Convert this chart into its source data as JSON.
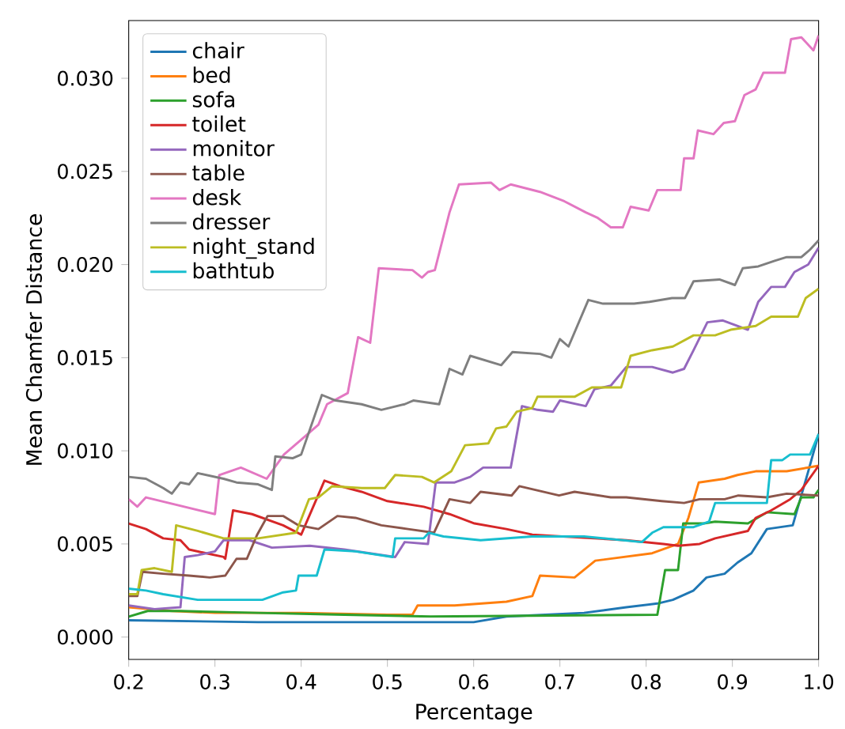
{
  "chart_data": {
    "type": "line",
    "xlabel": "Percentage",
    "ylabel": "Mean Chamfer Distance",
    "xlim": [
      0.2,
      1.0
    ],
    "ylim": [
      -0.0012,
      0.0331
    ],
    "xticks": [
      0.2,
      0.3,
      0.4,
      0.5,
      0.6,
      0.7,
      0.8,
      0.9,
      {
        "value": 1.0,
        "label": "1.0"
      }
    ],
    "yticks": [
      {
        "value": 0,
        "label": "0.000"
      },
      {
        "value": 0.005,
        "label": "0.005"
      },
      {
        "value": 0.01,
        "label": "0.010"
      },
      {
        "value": 0.015,
        "label": "0.015"
      },
      {
        "value": 0.02,
        "label": "0.020"
      },
      {
        "value": 0.025,
        "label": "0.025"
      },
      {
        "value": 0.03,
        "label": "0.030"
      }
    ],
    "legend": "top left",
    "grid": false,
    "marker": "none",
    "line_style": "solid",
    "series": [
      {
        "name": "chair",
        "color": "#1f77b4",
        "x": [
          0.2,
          0.35,
          0.6,
          0.638,
          0.728,
          0.777,
          0.813,
          0.831,
          0.855,
          0.87,
          0.891,
          0.906,
          0.922,
          0.94,
          0.97,
          0.988,
          1.0
        ],
        "values": [
          0.0009,
          0.0008,
          0.0008,
          0.0011,
          0.0013,
          0.0016,
          0.0018,
          0.002,
          0.0025,
          0.0032,
          0.0034,
          0.004,
          0.0045,
          0.0058,
          0.006,
          0.0089,
          0.0109
        ]
      },
      {
        "name": "bed",
        "color": "#ff7f0e",
        "x": [
          0.2,
          0.25,
          0.3,
          0.4,
          0.5,
          0.529,
          0.535,
          0.578,
          0.638,
          0.668,
          0.677,
          0.717,
          0.741,
          0.807,
          0.837,
          0.849,
          0.861,
          0.891,
          0.906,
          0.927,
          0.963,
          1.0
        ],
        "values": [
          0.0016,
          0.0014,
          0.0013,
          0.0013,
          0.0012,
          0.0012,
          0.0017,
          0.0017,
          0.0019,
          0.0022,
          0.0033,
          0.0032,
          0.0041,
          0.0045,
          0.005,
          0.0064,
          0.0083,
          0.0085,
          0.0087,
          0.0089,
          0.0089,
          0.0092
        ]
      },
      {
        "name": "sofa",
        "color": "#2ca02c",
        "x": [
          0.2,
          0.222,
          0.26,
          0.35,
          0.45,
          0.55,
          0.813,
          0.822,
          0.837,
          0.843,
          0.867,
          0.88,
          0.918,
          0.94,
          0.972,
          0.98,
          0.994,
          1.0
        ],
        "values": [
          0.0011,
          0.0014,
          0.0014,
          0.0013,
          0.0012,
          0.0011,
          0.0012,
          0.0036,
          0.0036,
          0.0061,
          0.0061,
          0.0062,
          0.0061,
          0.0067,
          0.0066,
          0.0075,
          0.0075,
          0.0079
        ]
      },
      {
        "name": "toilet",
        "color": "#d62728",
        "x": [
          0.2,
          0.22,
          0.24,
          0.26,
          0.27,
          0.29,
          0.31,
          0.312,
          0.321,
          0.343,
          0.379,
          0.4,
          0.427,
          0.445,
          0.47,
          0.5,
          0.542,
          0.572,
          0.601,
          0.638,
          0.668,
          0.777,
          0.82,
          0.837,
          0.862,
          0.88,
          0.918,
          0.927,
          0.945,
          0.967,
          0.98,
          1.0
        ],
        "values": [
          0.0061,
          0.0058,
          0.0053,
          0.0052,
          0.0047,
          0.0045,
          0.0043,
          0.0042,
          0.0068,
          0.0066,
          0.006,
          0.0055,
          0.0084,
          0.0081,
          0.0078,
          0.0073,
          0.007,
          0.0066,
          0.0061,
          0.0058,
          0.0055,
          0.0052,
          0.005,
          0.0049,
          0.005,
          0.0053,
          0.0057,
          0.0064,
          0.0068,
          0.0074,
          0.0079,
          0.0092
        ]
      },
      {
        "name": "monitor",
        "color": "#9467bd",
        "x": [
          0.2,
          0.23,
          0.26,
          0.265,
          0.28,
          0.3,
          0.31,
          0.34,
          0.366,
          0.41,
          0.45,
          0.509,
          0.52,
          0.547,
          0.556,
          0.578,
          0.596,
          0.611,
          0.643,
          0.656,
          0.674,
          0.692,
          0.7,
          0.73,
          0.74,
          0.759,
          0.777,
          0.807,
          0.831,
          0.844,
          0.855,
          0.871,
          0.889,
          0.918,
          0.93,
          0.945,
          0.961,
          0.972,
          0.988,
          1.0
        ],
        "values": [
          0.0017,
          0.0015,
          0.0016,
          0.0043,
          0.0044,
          0.0046,
          0.0052,
          0.0052,
          0.0048,
          0.0049,
          0.0047,
          0.0043,
          0.0051,
          0.005,
          0.0083,
          0.0083,
          0.0086,
          0.0091,
          0.0091,
          0.0124,
          0.0122,
          0.0121,
          0.0127,
          0.0124,
          0.0133,
          0.0135,
          0.0145,
          0.0145,
          0.0142,
          0.0144,
          0.0154,
          0.0169,
          0.017,
          0.0165,
          0.018,
          0.0188,
          0.0188,
          0.0196,
          0.02,
          0.0209
        ]
      },
      {
        "name": "table",
        "color": "#8c564b",
        "x": [
          0.2,
          0.21,
          0.216,
          0.24,
          0.27,
          0.294,
          0.312,
          0.325,
          0.337,
          0.349,
          0.361,
          0.379,
          0.397,
          0.42,
          0.442,
          0.463,
          0.493,
          0.524,
          0.554,
          0.572,
          0.596,
          0.608,
          0.644,
          0.653,
          0.699,
          0.717,
          0.759,
          0.777,
          0.818,
          0.844,
          0.862,
          0.891,
          0.907,
          0.94,
          0.963,
          1.0
        ],
        "values": [
          0.0022,
          0.0022,
          0.0035,
          0.0034,
          0.0033,
          0.0032,
          0.0033,
          0.0042,
          0.0042,
          0.0055,
          0.0065,
          0.0065,
          0.006,
          0.0058,
          0.0065,
          0.0064,
          0.006,
          0.0058,
          0.0056,
          0.0074,
          0.0072,
          0.0078,
          0.0076,
          0.0081,
          0.0076,
          0.0078,
          0.0075,
          0.0075,
          0.0073,
          0.0072,
          0.0074,
          0.0074,
          0.0076,
          0.0075,
          0.0077,
          0.0076
        ]
      },
      {
        "name": "desk",
        "color": "#e377c2",
        "x": [
          0.2,
          0.21,
          0.22,
          0.3,
          0.305,
          0.33,
          0.36,
          0.38,
          0.4,
          0.42,
          0.43,
          0.454,
          0.466,
          0.48,
          0.49,
          0.529,
          0.54,
          0.547,
          0.555,
          0.572,
          0.583,
          0.62,
          0.63,
          0.643,
          0.677,
          0.705,
          0.73,
          0.744,
          0.759,
          0.773,
          0.782,
          0.803,
          0.813,
          0.84,
          0.844,
          0.855,
          0.86,
          0.878,
          0.89,
          0.903,
          0.914,
          0.927,
          0.936,
          0.961,
          0.968,
          0.98,
          0.994,
          1.0
        ],
        "values": [
          0.0074,
          0.007,
          0.0075,
          0.0066,
          0.0087,
          0.0091,
          0.0085,
          0.0098,
          0.0106,
          0.0114,
          0.0125,
          0.0131,
          0.0161,
          0.0158,
          0.0198,
          0.0197,
          0.0193,
          0.0196,
          0.0197,
          0.0228,
          0.0243,
          0.0244,
          0.024,
          0.0243,
          0.0239,
          0.0234,
          0.0228,
          0.0225,
          0.022,
          0.022,
          0.0231,
          0.0229,
          0.024,
          0.024,
          0.0257,
          0.0257,
          0.0272,
          0.027,
          0.0276,
          0.0277,
          0.0291,
          0.0294,
          0.0303,
          0.0303,
          0.0321,
          0.0322,
          0.0315,
          0.0323
        ]
      },
      {
        "name": "dresser",
        "color": "#7f7f7f",
        "x": [
          0.2,
          0.22,
          0.24,
          0.25,
          0.26,
          0.27,
          0.28,
          0.31,
          0.325,
          0.35,
          0.366,
          0.37,
          0.39,
          0.4,
          0.424,
          0.44,
          0.47,
          0.493,
          0.52,
          0.53,
          0.56,
          0.572,
          0.587,
          0.596,
          0.632,
          0.645,
          0.677,
          0.69,
          0.7,
          0.71,
          0.733,
          0.75,
          0.786,
          0.804,
          0.83,
          0.845,
          0.855,
          0.885,
          0.903,
          0.912,
          0.93,
          0.949,
          0.963,
          0.98,
          0.99,
          1.0
        ],
        "values": [
          0.0086,
          0.0085,
          0.008,
          0.0077,
          0.0083,
          0.0082,
          0.0088,
          0.0085,
          0.0083,
          0.0082,
          0.0079,
          0.0097,
          0.0096,
          0.0098,
          0.013,
          0.0127,
          0.0125,
          0.0122,
          0.0125,
          0.0127,
          0.0125,
          0.0144,
          0.0141,
          0.0151,
          0.0146,
          0.0153,
          0.0152,
          0.015,
          0.016,
          0.0156,
          0.0181,
          0.0179,
          0.0179,
          0.018,
          0.0182,
          0.0182,
          0.0191,
          0.0192,
          0.0189,
          0.0198,
          0.0199,
          0.0202,
          0.0204,
          0.0204,
          0.0208,
          0.0213
        ]
      },
      {
        "name": "night_stand",
        "color": "#bcbd22",
        "x": [
          0.2,
          0.21,
          0.215,
          0.23,
          0.25,
          0.255,
          0.28,
          0.31,
          0.35,
          0.394,
          0.409,
          0.42,
          0.436,
          0.47,
          0.497,
          0.509,
          0.54,
          0.554,
          0.574,
          0.59,
          0.617,
          0.626,
          0.638,
          0.65,
          0.668,
          0.674,
          0.717,
          0.737,
          0.771,
          0.782,
          0.807,
          0.831,
          0.855,
          0.88,
          0.898,
          0.927,
          0.945,
          0.976,
          0.985,
          1.0
        ],
        "values": [
          0.0023,
          0.0023,
          0.0036,
          0.0037,
          0.0035,
          0.006,
          0.0057,
          0.0053,
          0.0053,
          0.0056,
          0.0074,
          0.0075,
          0.0081,
          0.008,
          0.008,
          0.0087,
          0.0086,
          0.0083,
          0.0089,
          0.0103,
          0.0104,
          0.0112,
          0.0113,
          0.0121,
          0.0123,
          0.0129,
          0.0129,
          0.0134,
          0.0134,
          0.0151,
          0.0154,
          0.0156,
          0.0162,
          0.0162,
          0.0165,
          0.0167,
          0.0172,
          0.0172,
          0.0182,
          0.0187
        ]
      },
      {
        "name": "bathtub",
        "color": "#17becf",
        "x": [
          0.2,
          0.22,
          0.24,
          0.28,
          0.355,
          0.379,
          0.394,
          0.397,
          0.418,
          0.427,
          0.463,
          0.506,
          0.509,
          0.542,
          0.548,
          0.565,
          0.608,
          0.668,
          0.728,
          0.795,
          0.807,
          0.82,
          0.855,
          0.873,
          0.88,
          0.94,
          0.945,
          0.958,
          0.967,
          0.99,
          1.0
        ],
        "values": [
          0.0026,
          0.0025,
          0.0023,
          0.002,
          0.002,
          0.0024,
          0.0025,
          0.0033,
          0.0033,
          0.0047,
          0.0046,
          0.0043,
          0.0053,
          0.0053,
          0.0056,
          0.0054,
          0.0052,
          0.0054,
          0.0054,
          0.0051,
          0.0056,
          0.0059,
          0.0059,
          0.0062,
          0.0072,
          0.0072,
          0.0095,
          0.0095,
          0.0098,
          0.0098,
          0.0109
        ]
      }
    ]
  }
}
